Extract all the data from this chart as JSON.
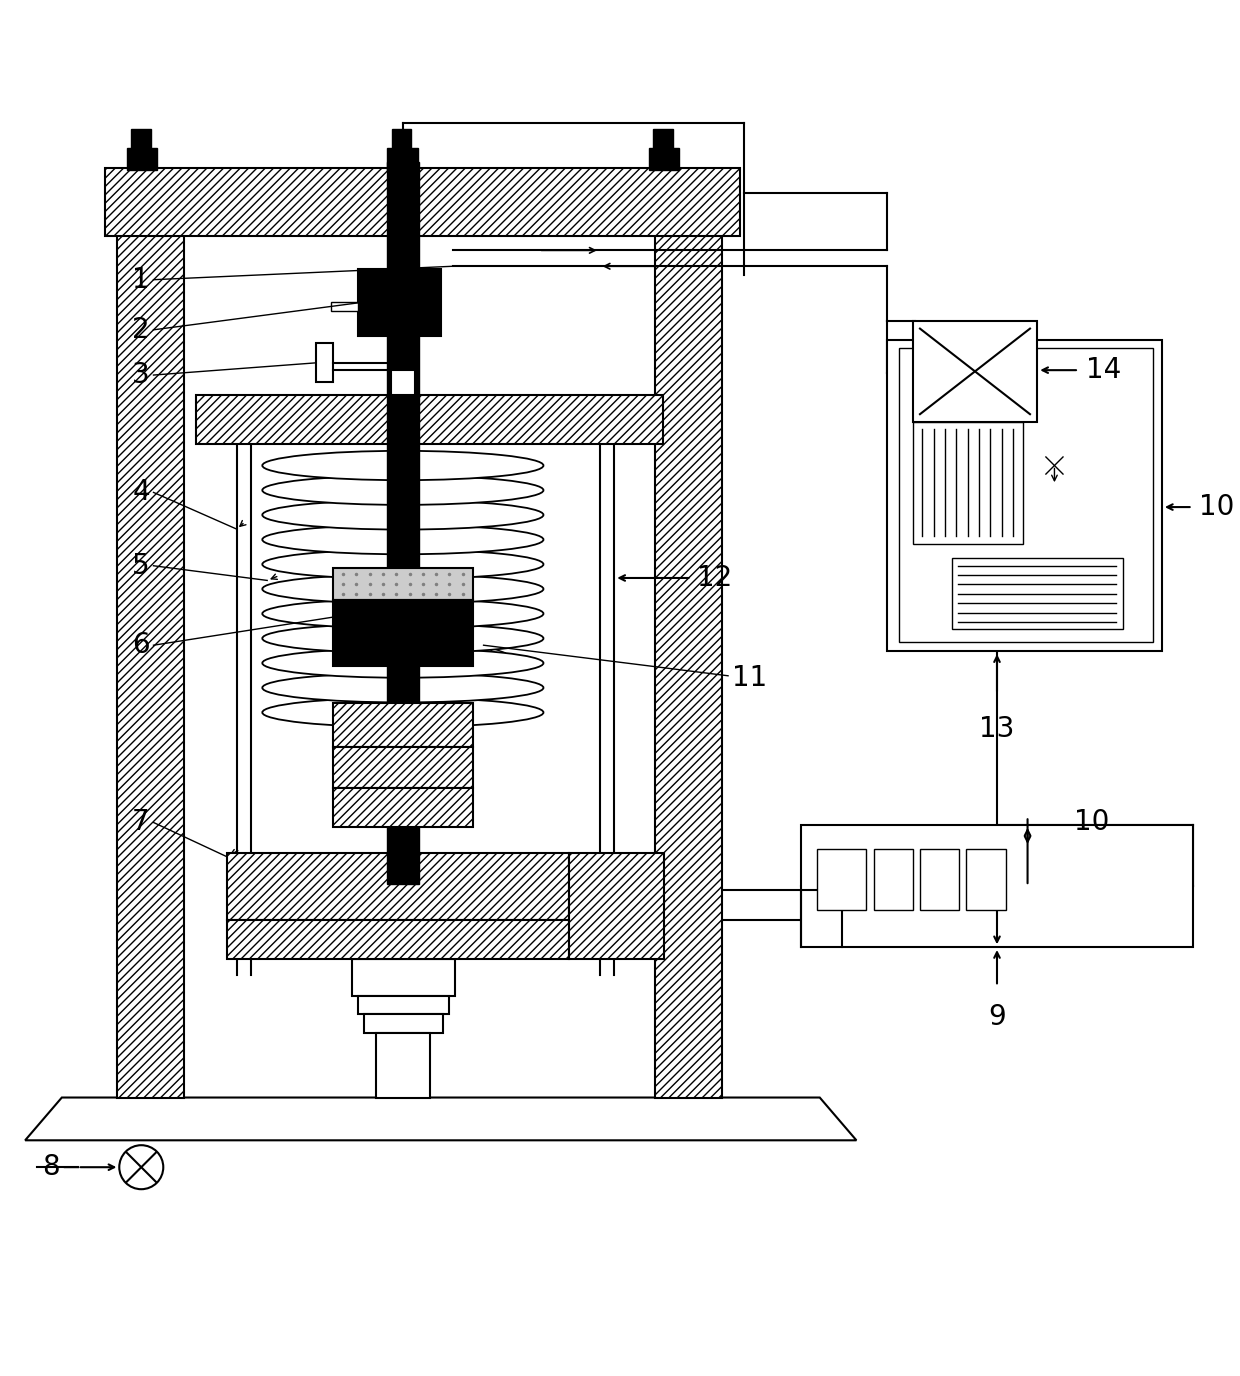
{
  "bg_color": "#ffffff",
  "line_color": "#000000",
  "figsize": [
    12.4,
    13.76
  ],
  "label_fontsize": 20,
  "lw_main": 1.5
}
